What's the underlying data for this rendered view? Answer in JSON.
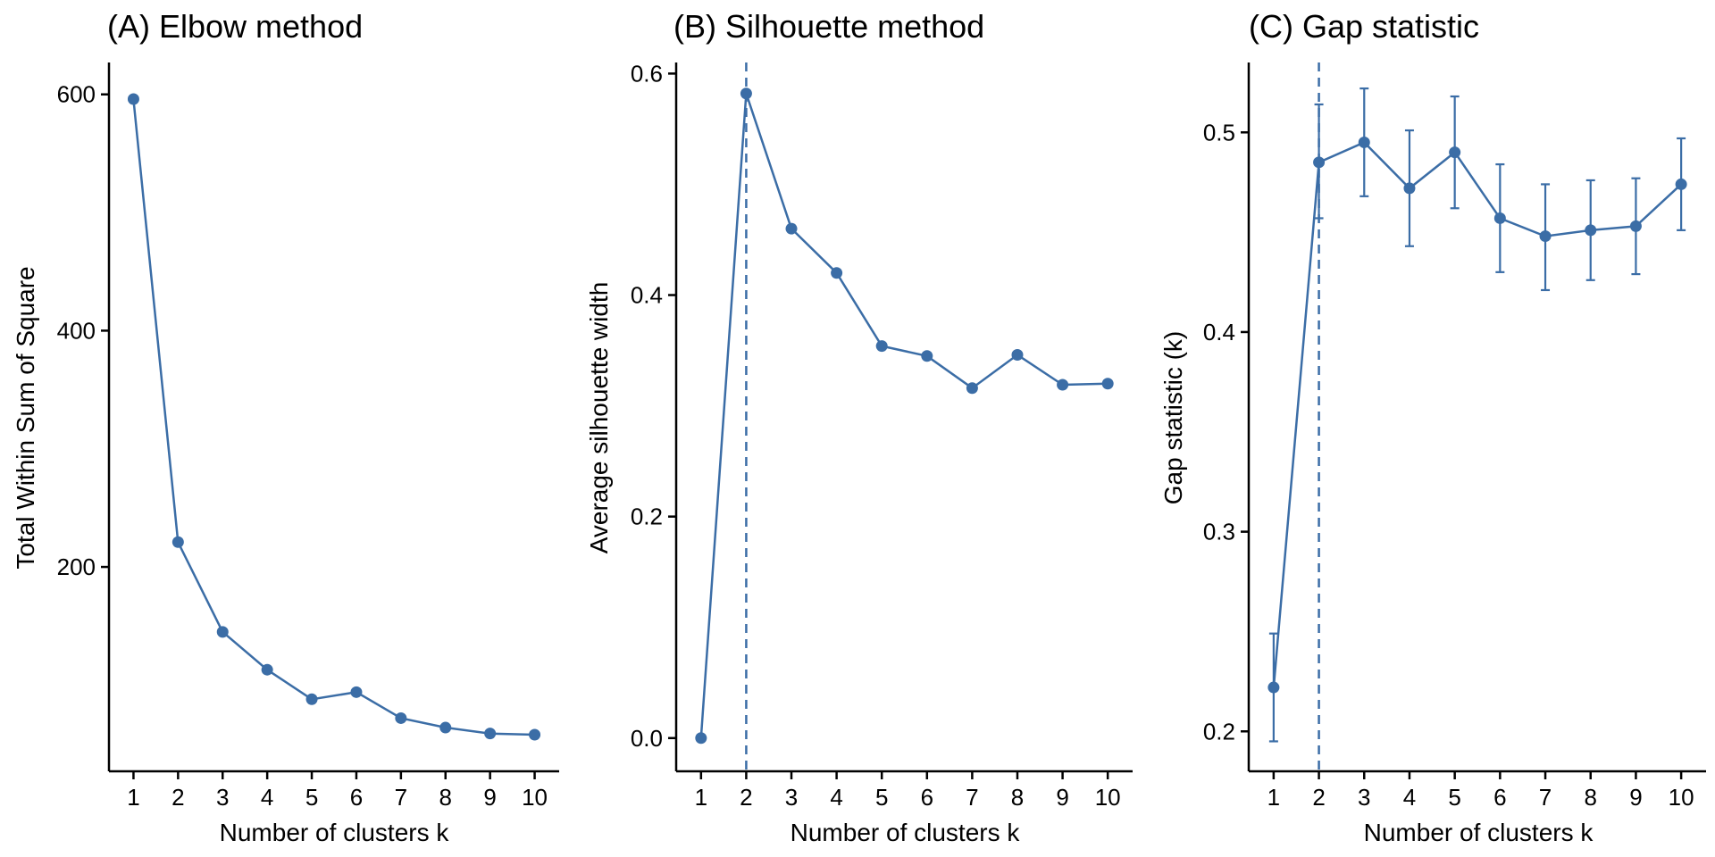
{
  "figure": {
    "line_color": "#3b6da6",
    "shared_xlabel": "Number of clusters k"
  },
  "chart_data": [
    {
      "type": "line",
      "title": "(A) Elbow method",
      "xlabel": "Number of clusters k",
      "ylabel": "Total Within Sum of Square",
      "x": [
        1,
        2,
        3,
        4,
        5,
        6,
        7,
        8,
        9,
        10
      ],
      "xticks": [
        "1",
        "2",
        "3",
        "4",
        "5",
        "6",
        "7",
        "8",
        "9",
        "10"
      ],
      "xlim": [
        0.45,
        10.55
      ],
      "ylim": [
        27,
        627
      ],
      "yticks": [
        200,
        400,
        600
      ],
      "ytick_labels": [
        "200",
        "400",
        "600"
      ],
      "series": [
        {
          "values": [
            596,
            221,
            145,
            113,
            88,
            94,
            72,
            64,
            59,
            58
          ]
        }
      ],
      "grid": false,
      "legend": "none"
    },
    {
      "type": "line",
      "title": "(B) Silhouette method",
      "xlabel": "Number of clusters k",
      "ylabel": "Average silhouette width",
      "x": [
        1,
        2,
        3,
        4,
        5,
        6,
        7,
        8,
        9,
        10
      ],
      "xticks": [
        "1",
        "2",
        "3",
        "4",
        "5",
        "6",
        "7",
        "8",
        "9",
        "10"
      ],
      "xlim": [
        0.45,
        10.55
      ],
      "ylim": [
        -0.03,
        0.61
      ],
      "yticks": [
        0.0,
        0.2,
        0.4,
        0.6
      ],
      "ytick_labels": [
        "0.0",
        "0.2",
        "0.4",
        "0.6"
      ],
      "series": [
        {
          "values": [
            0.0,
            0.582,
            0.46,
            0.42,
            0.354,
            0.345,
            0.316,
            0.346,
            0.319,
            0.32
          ]
        }
      ],
      "vline": 2,
      "grid": false,
      "legend": "none"
    },
    {
      "type": "line",
      "title": "(C) Gap statistic",
      "xlabel": "Number of clusters k",
      "ylabel": "Gap statistic (k)",
      "x": [
        1,
        2,
        3,
        4,
        5,
        6,
        7,
        8,
        9,
        10
      ],
      "xticks": [
        "1",
        "2",
        "3",
        "4",
        "5",
        "6",
        "7",
        "8",
        "9",
        "10"
      ],
      "xlim": [
        0.45,
        10.55
      ],
      "ylim": [
        0.18,
        0.535
      ],
      "yticks": [
        0.2,
        0.3,
        0.4,
        0.5
      ],
      "ytick_labels": [
        "0.2",
        "0.3",
        "0.4",
        "0.5"
      ],
      "series": [
        {
          "values": [
            0.222,
            0.485,
            0.495,
            0.472,
            0.49,
            0.457,
            0.448,
            0.451,
            0.453,
            0.474
          ],
          "error_low": [
            0.195,
            0.457,
            0.468,
            0.443,
            0.462,
            0.43,
            0.421,
            0.426,
            0.429,
            0.451
          ],
          "error_high": [
            0.249,
            0.514,
            0.522,
            0.501,
            0.518,
            0.484,
            0.474,
            0.476,
            0.477,
            0.497
          ]
        }
      ],
      "vline": 2,
      "grid": false,
      "legend": "none"
    }
  ]
}
